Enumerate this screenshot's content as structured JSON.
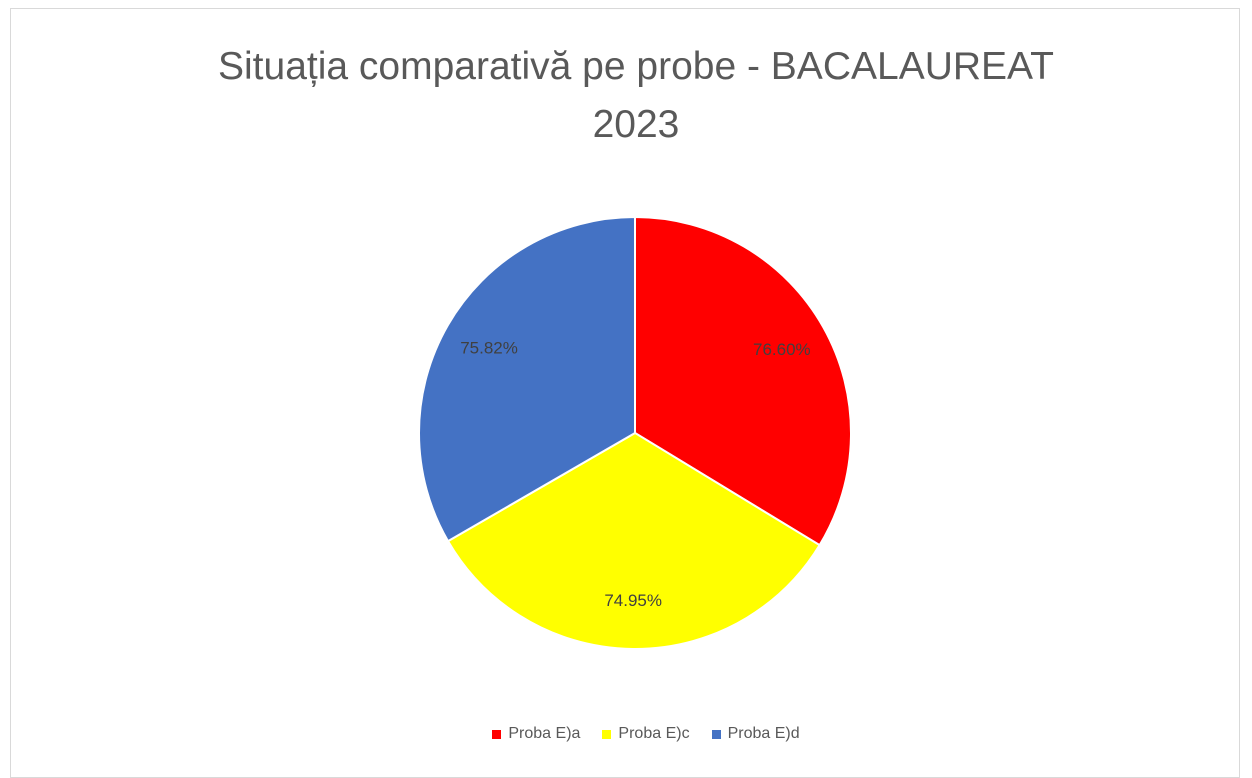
{
  "chart_data": {
    "type": "pie",
    "title": "Situația comparativă pe probe - BACALAUREAT 2023",
    "categories": [
      "Proba E)a",
      "Proba E)c",
      "Proba E)d"
    ],
    "values": [
      76.6,
      74.95,
      75.82
    ],
    "value_labels": [
      "76.60%",
      "74.95%",
      "75.82%"
    ],
    "colors": [
      "#ff0000",
      "#ffff00",
      "#4472c4"
    ],
    "legend": "bottom"
  }
}
